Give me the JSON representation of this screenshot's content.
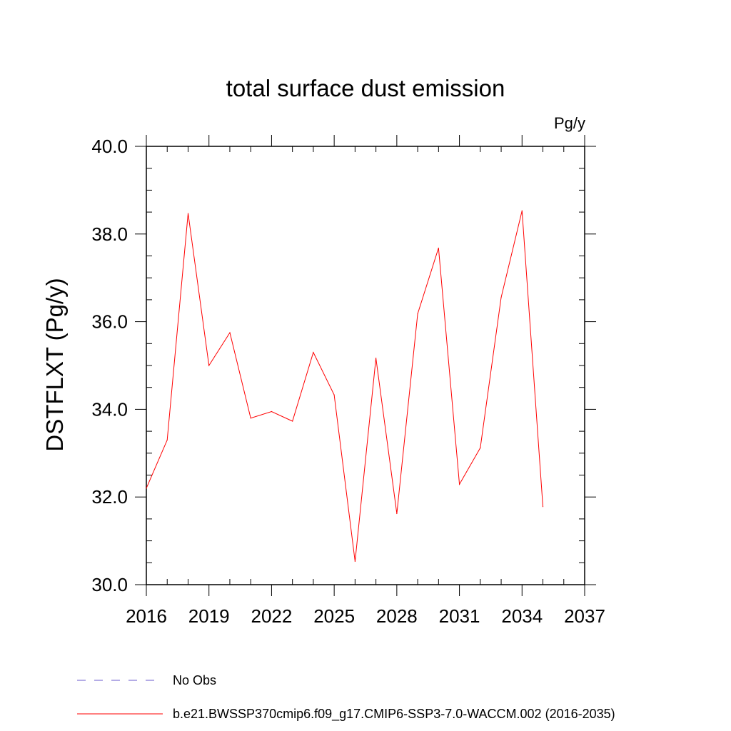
{
  "chart_data": {
    "type": "line",
    "title": "total surface dust emission",
    "units_label": "Pg/y",
    "ylabel": "DSTFLXT  (Pg/y)",
    "xlabel": "",
    "xlim": [
      2016,
      2037
    ],
    "ylim": [
      30.0,
      40.0
    ],
    "x_ticks": [
      "2016",
      "2019",
      "2022",
      "2025",
      "2028",
      "2031",
      "2034",
      "2037"
    ],
    "y_ticks": [
      "30.0",
      "32.0",
      "34.0",
      "36.0",
      "38.0",
      "40.0"
    ],
    "grid": false,
    "series": [
      {
        "name": "b.e21.BWSSP370cmip6.f09_g17.CMIP6-SSP3-7.0-WACCM.002 (2016-2035)",
        "color": "#ff0000",
        "x": [
          2016,
          2017,
          2018,
          2019,
          2020,
          2021,
          2022,
          2023,
          2024,
          2025,
          2026,
          2027,
          2028,
          2029,
          2030,
          2031,
          2032,
          2033,
          2034,
          2035
        ],
        "values": [
          32.2,
          33.3,
          38.47,
          35.0,
          35.75,
          33.8,
          33.95,
          33.73,
          35.3,
          34.33,
          30.53,
          35.17,
          31.62,
          36.18,
          37.68,
          32.29,
          33.12,
          36.55,
          38.53,
          31.78
        ]
      }
    ],
    "legend": [
      {
        "label": "No Obs",
        "color": "#6a5acd",
        "style": "dashed"
      },
      {
        "label": "b.e21.BWSSP370cmip6.f09_g17.CMIP6-SSP3-7.0-WACCM.002 (2016-2035)",
        "color": "#ff0000",
        "style": "solid"
      }
    ],
    "legend_position": "bottom-left"
  }
}
